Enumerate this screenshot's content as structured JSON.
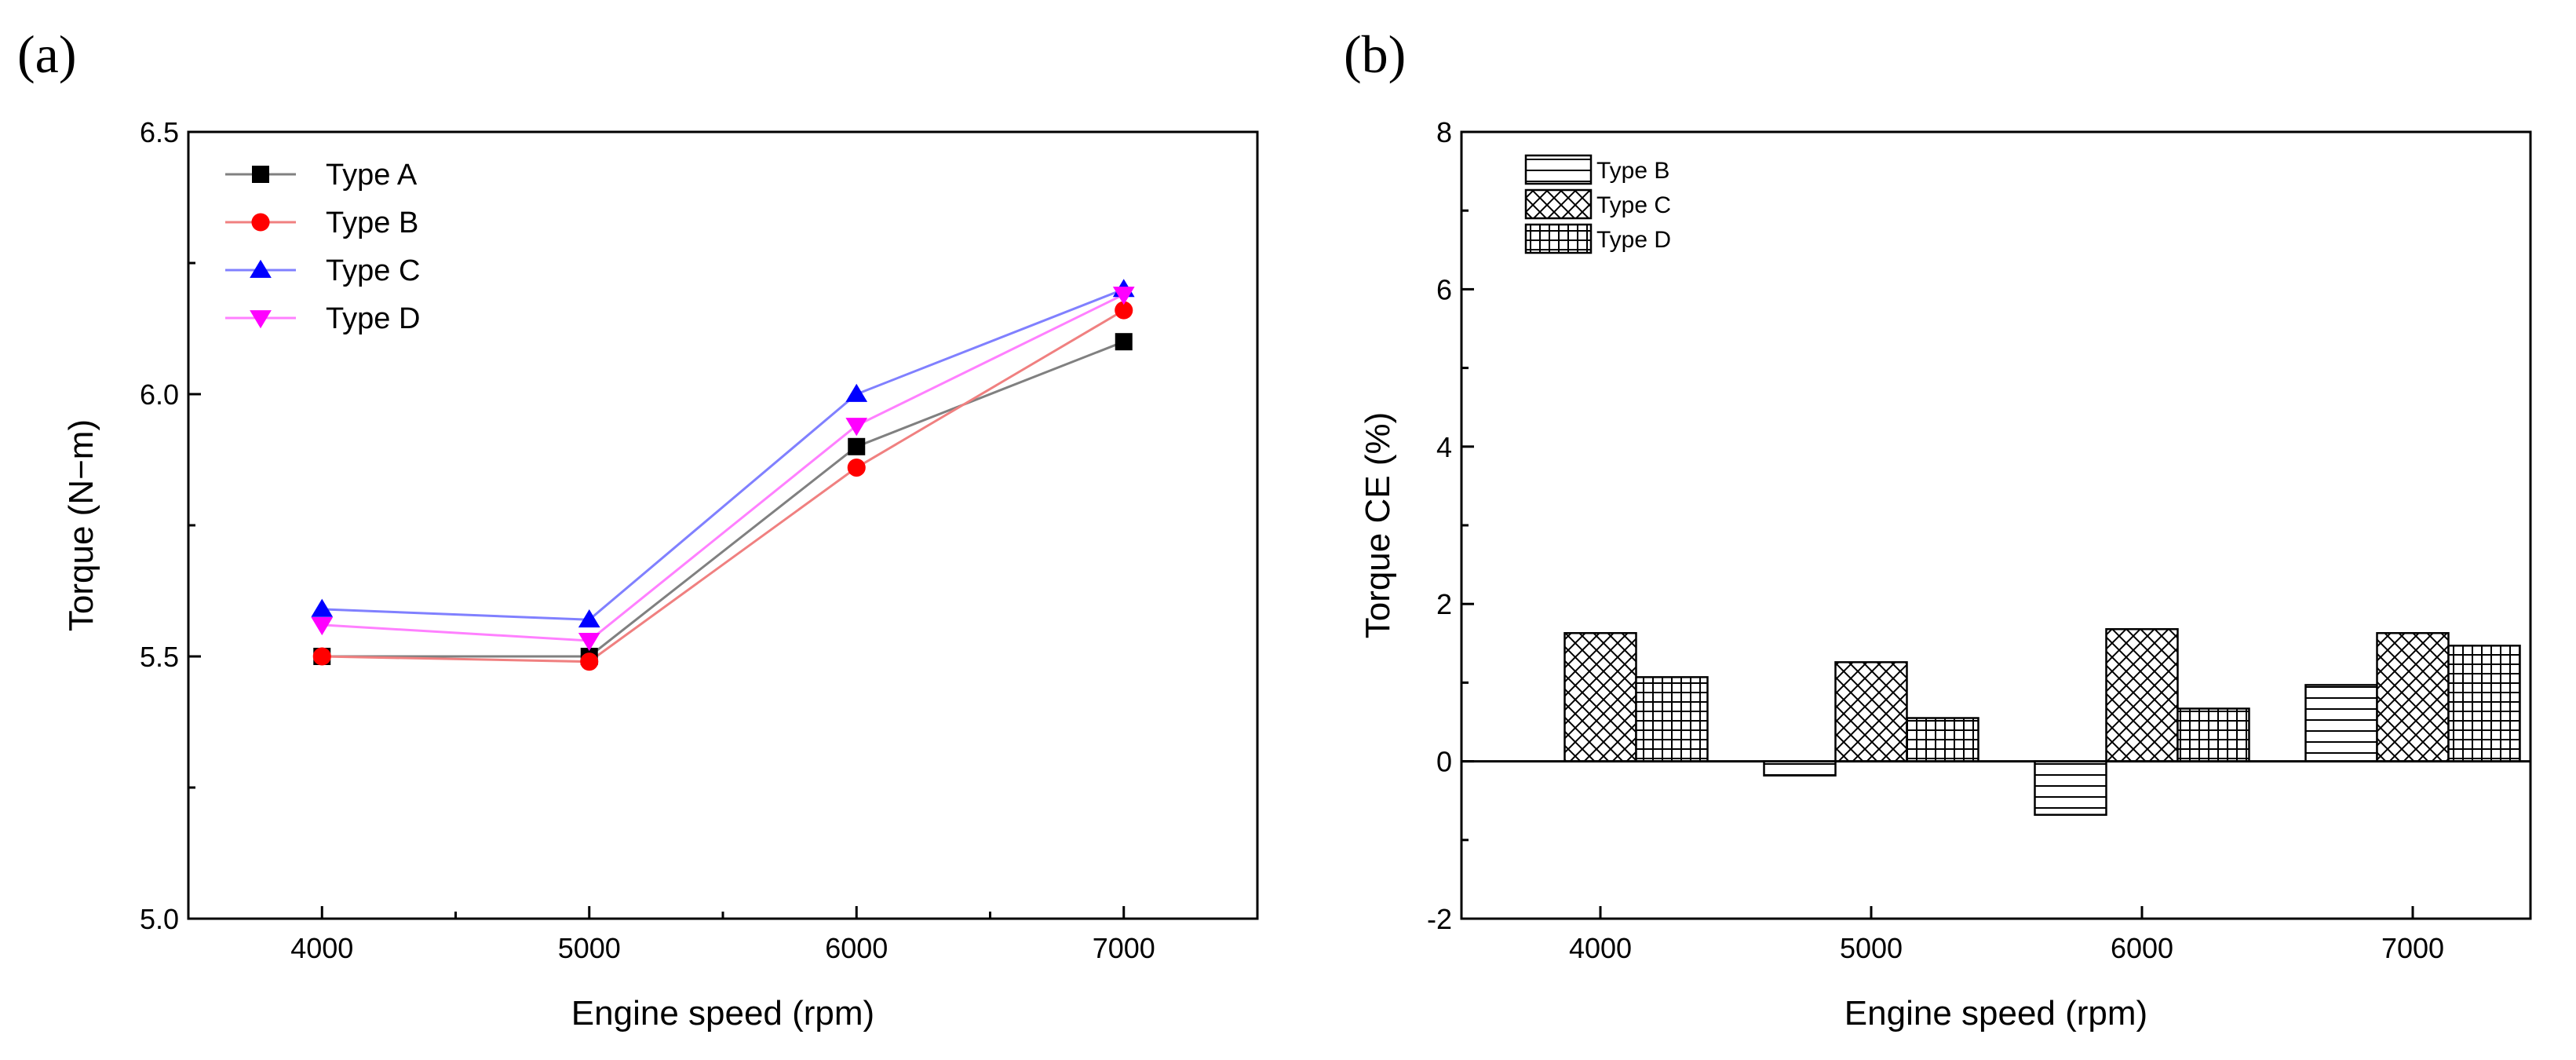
{
  "chart_data": [
    {
      "panel": "(a)",
      "type": "line",
      "title": "",
      "xlabel": "Engine speed (rpm)",
      "ylabel": "Torque (N−m)",
      "categories": [
        "4000",
        "5000",
        "6000",
        "7000"
      ],
      "x": [
        4000,
        5000,
        6000,
        7000
      ],
      "xlim": [
        3500,
        7500
      ],
      "ylim": [
        5.0,
        6.5
      ],
      "yticks": [
        "5.0",
        "5.5",
        "6.0",
        "6.5"
      ],
      "grid": false,
      "legend_position": "top-left",
      "series": [
        {
          "name": "Type A",
          "marker": "square",
          "color": "#000000",
          "line_color": "#808080",
          "values": [
            5.5,
            5.5,
            5.9,
            6.1
          ]
        },
        {
          "name": "Type B",
          "marker": "circle",
          "color": "#ff0000",
          "line_color": "#f08080",
          "values": [
            5.5,
            5.49,
            5.86,
            6.16
          ]
        },
        {
          "name": "Type C",
          "marker": "triangle-up",
          "color": "#0000ff",
          "line_color": "#8080ff",
          "values": [
            5.59,
            5.57,
            6.0,
            6.2
          ]
        },
        {
          "name": "Type D",
          "marker": "triangle-down",
          "color": "#ff00ff",
          "line_color": "#ff80ff",
          "values": [
            5.56,
            5.53,
            5.94,
            6.19
          ]
        }
      ]
    },
    {
      "panel": "(b)",
      "type": "bar",
      "title": "",
      "xlabel": "Engine speed (rpm)",
      "ylabel": "Torque CE (%)",
      "categories": [
        "4000",
        "5000",
        "6000",
        "7000"
      ],
      "ylim": [
        -2,
        8
      ],
      "yticks": [
        "-2",
        "0",
        "2",
        "4",
        "6",
        "8"
      ],
      "grid": false,
      "legend_position": "top-left",
      "series": [
        {
          "name": "Type B",
          "pattern": "horizontal-lines",
          "values": [
            0.0,
            -0.18,
            -0.68,
            0.97
          ]
        },
        {
          "name": "Type C",
          "pattern": "crosshatch",
          "values": [
            1.63,
            1.26,
            1.68,
            1.63
          ]
        },
        {
          "name": "Type D",
          "pattern": "grid",
          "values": [
            1.07,
            0.55,
            0.67,
            1.47
          ]
        }
      ]
    }
  ]
}
